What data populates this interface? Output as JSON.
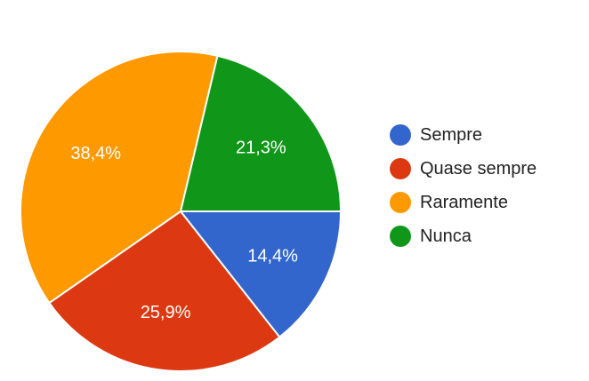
{
  "chart_data": {
    "type": "pie",
    "start_direction": "right",
    "direction": "clockwise",
    "legend_position": "right",
    "slices": [
      {
        "label": "Sempre",
        "value": 14.4,
        "value_label": "14,4%",
        "color": "#3366cc"
      },
      {
        "label": "Quase sempre",
        "value": 25.9,
        "value_label": "25,9%",
        "color": "#dc3912"
      },
      {
        "label": "Raramente",
        "value": 38.4,
        "value_label": "38,4%",
        "color": "#ff9900"
      },
      {
        "label": "Nunca",
        "value": 21.3,
        "value_label": "21,3%",
        "color": "#109618"
      }
    ]
  }
}
